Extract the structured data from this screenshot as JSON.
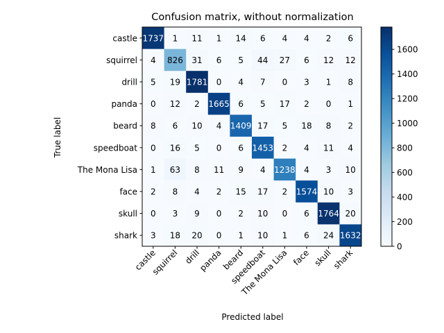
{
  "chart_data": {
    "type": "heatmap",
    "title": "Confusion matrix, without normalization",
    "xlabel": "Predicted label",
    "ylabel": "True label",
    "row_labels": [
      "castle",
      "squirrel",
      "drill",
      "panda",
      "beard",
      "speedboat",
      "The Mona Lisa",
      "face",
      "skull",
      "shark"
    ],
    "col_labels": [
      "castle",
      "squirrel",
      "drill",
      "panda",
      "beard",
      "speedboat",
      "The Mona Lisa",
      "face",
      "skull",
      "shark"
    ],
    "values": [
      [
        1737,
        1,
        11,
        1,
        14,
        6,
        4,
        4,
        2,
        6
      ],
      [
        4,
        826,
        31,
        6,
        5,
        44,
        27,
        6,
        12,
        12
      ],
      [
        5,
        19,
        1781,
        0,
        4,
        7,
        0,
        3,
        1,
        8
      ],
      [
        0,
        12,
        2,
        1665,
        6,
        5,
        17,
        2,
        0,
        1
      ],
      [
        8,
        6,
        10,
        4,
        1409,
        17,
        5,
        18,
        8,
        2
      ],
      [
        0,
        16,
        5,
        0,
        6,
        1453,
        2,
        4,
        11,
        4
      ],
      [
        1,
        63,
        8,
        11,
        9,
        4,
        1238,
        4,
        3,
        10
      ],
      [
        2,
        8,
        4,
        2,
        15,
        17,
        2,
        1574,
        10,
        3
      ],
      [
        0,
        3,
        9,
        0,
        2,
        10,
        0,
        6,
        1764,
        20
      ],
      [
        3,
        18,
        20,
        0,
        1,
        10,
        1,
        6,
        24,
        1632
      ]
    ],
    "colormap": "Blues",
    "vmin": 0,
    "vmax": 1781,
    "colorbar_ticks": [
      0,
      200,
      400,
      600,
      800,
      1000,
      1200,
      1400,
      1600
    ],
    "text_color_light": "#ffffff",
    "text_color_dark": "#000000"
  }
}
